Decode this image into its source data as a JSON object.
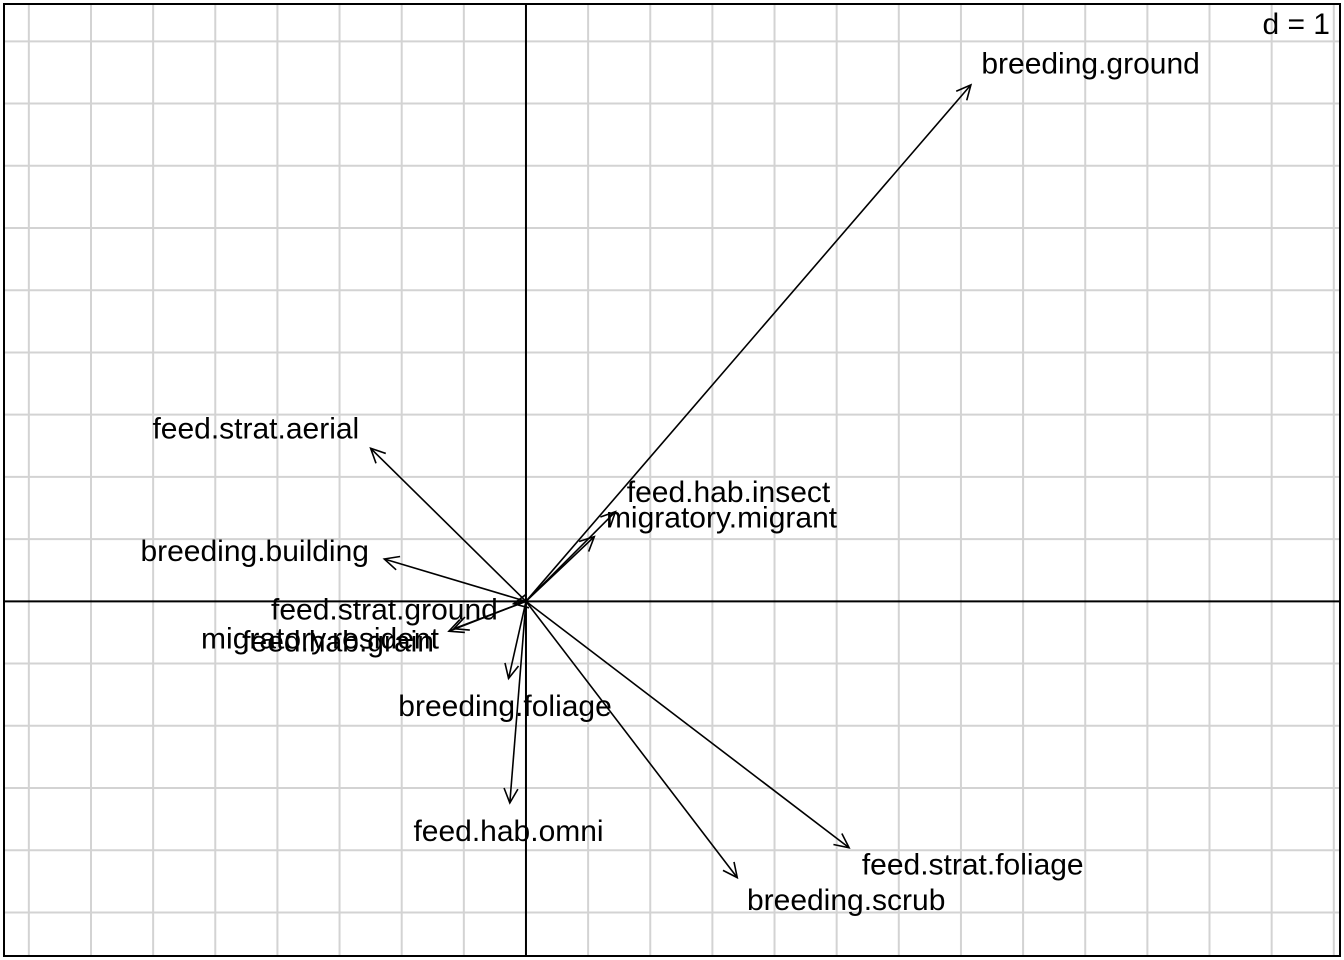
{
  "chart_data": {
    "type": "scatter",
    "subtype": "correlation-circle-arrows",
    "scale_label": "d = 1",
    "grid": true,
    "xlim": [
      -4.2,
      6.55
    ],
    "ylim": [
      -2.85,
      4.8
    ],
    "origin": [
      0,
      0
    ],
    "series": [
      {
        "label": "breeding.ground",
        "x": 3.58,
        "y": 4.15
      },
      {
        "label": "feed.strat.aerial",
        "x": -1.25,
        "y": 1.23
      },
      {
        "label": "feed.hab.insect",
        "x": 0.72,
        "y": 0.72
      },
      {
        "label": "migratory.migrant",
        "x": 0.55,
        "y": 0.52
      },
      {
        "label": "breeding.building",
        "x": -1.14,
        "y": 0.34
      },
      {
        "label": "feed.strat.ground",
        "x": -0.1,
        "y": -0.02
      },
      {
        "label": "migratory.resident",
        "x": -0.58,
        "y": -0.22
      },
      {
        "label": "feed.hab.grain",
        "x": -0.62,
        "y": -0.24
      },
      {
        "label": "breeding.foliage",
        "x": -0.14,
        "y": -0.62
      },
      {
        "label": "feed.hab.omni",
        "x": -0.13,
        "y": -1.62
      },
      {
        "label": "breeding.scrub",
        "x": 1.7,
        "y": -2.22
      },
      {
        "label": "feed.strat.foliage",
        "x": 2.6,
        "y": -1.98
      }
    ]
  }
}
